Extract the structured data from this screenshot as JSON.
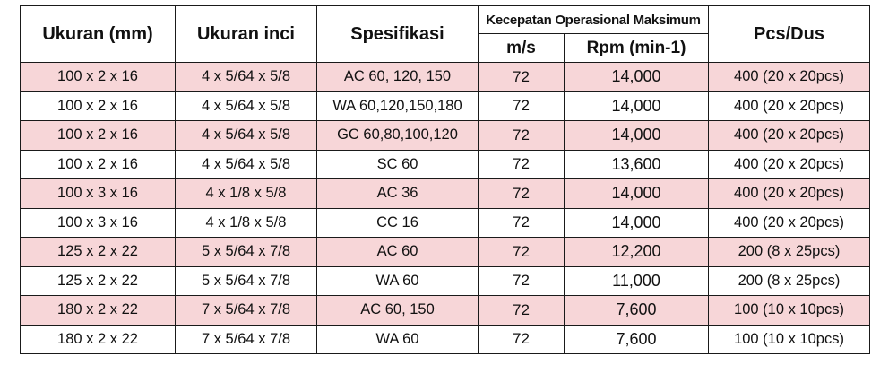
{
  "table": {
    "headers": {
      "size_mm": "Ukuran (mm)",
      "size_inch": "Ukuran inci",
      "spec": "Spesifikasi",
      "speed_group": "Kecepatan Operasional Maksimum",
      "ms": "m/s",
      "rpm": "Rpm (min-1)",
      "pcs": "Pcs/Dus"
    },
    "row_colors": {
      "highlight": "#f7d6d8",
      "plain": "#ffffff"
    },
    "rows": [
      {
        "mm": "100 x 2 x 16",
        "inch": "4 x 5/64 x 5/8",
        "spec": "AC 60, 120, 150",
        "ms": "72",
        "rpm": "14,000",
        "pcs": "400 (20 x 20pcs)",
        "highlight": true
      },
      {
        "mm": "100 x 2 x 16",
        "inch": "4 x 5/64 x 5/8",
        "spec": "WA 60,120,150,180",
        "ms": "72",
        "rpm": "14,000",
        "pcs": "400 (20 x 20pcs)",
        "highlight": false
      },
      {
        "mm": "100 x 2 x 16",
        "inch": "4 x 5/64 x 5/8",
        "spec": "GC 60,80,100,120",
        "ms": "72",
        "rpm": "14,000",
        "pcs": "400 (20 x 20pcs)",
        "highlight": true
      },
      {
        "mm": "100 x 2 x 16",
        "inch": "4 x 5/64 x 5/8",
        "spec": "SC 60",
        "ms": "72",
        "rpm": "13,600",
        "pcs": "400 (20 x 20pcs)",
        "highlight": false
      },
      {
        "mm": "100 x 3 x 16",
        "inch": "4 x 1/8 x 5/8",
        "spec": "AC 36",
        "ms": "72",
        "rpm": "14,000",
        "pcs": "400 (20 x 20pcs)",
        "highlight": true
      },
      {
        "mm": "100 x 3 x 16",
        "inch": "4 x 1/8 x 5/8",
        "spec": "CC 16",
        "ms": "72",
        "rpm": "14,000",
        "pcs": "400 (20 x 20pcs)",
        "highlight": false
      },
      {
        "mm": "125 x 2 x 22",
        "inch": "5 x 5/64 x 7/8",
        "spec": "AC 60",
        "ms": "72",
        "rpm": "12,200",
        "pcs": "200 (8 x 25pcs)",
        "highlight": true
      },
      {
        "mm": "125 x 2 x 22",
        "inch": "5 x 5/64 x 7/8",
        "spec": "WA 60",
        "ms": "72",
        "rpm": "11,000",
        "pcs": "200 (8 x 25pcs)",
        "highlight": false
      },
      {
        "mm": "180 x 2 x 22",
        "inch": "7 x 5/64 x 7/8",
        "spec": "AC 60, 150",
        "ms": "72",
        "rpm": "7,600",
        "pcs": "100 (10 x 10pcs)",
        "highlight": true
      },
      {
        "mm": "180 x 2 x 22",
        "inch": "7 x 5/64 x 7/8",
        "spec": "WA 60",
        "ms": "72",
        "rpm": "7,600",
        "pcs": "100 (10 x 10pcs)",
        "highlight": false
      }
    ]
  }
}
